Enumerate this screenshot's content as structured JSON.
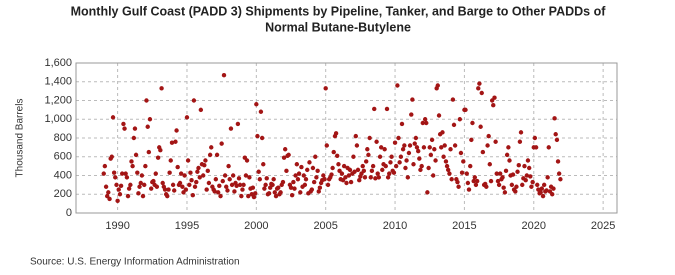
{
  "chart_data": {
    "type": "scatter",
    "title": [
      "Monthly Gulf Coast (PADD 3) Shipments by Pipeline, Tanker, and Barge to Other PADDs of",
      "Normal Butane-Butylene"
    ],
    "y_label": "Thousand Barrels",
    "source": "Source: U.S. Energy Information Administration",
    "xlim": [
      1987,
      2026
    ],
    "xticks": [
      1990,
      1995,
      2000,
      2005,
      2010,
      2015,
      2020,
      2025
    ],
    "ylim": [
      0,
      1600
    ],
    "yticks": [
      0,
      200,
      400,
      600,
      800,
      {
        "value": 1000,
        "label": "1,000"
      },
      {
        "value": 1200,
        "label": "1,200"
      },
      {
        "value": 1400,
        "label": "1,400"
      },
      {
        "value": 1600,
        "label": "1,600"
      }
    ],
    "grid": true,
    "series": [
      {
        "color": "#a31515",
        "x": [
          1989,
          1989.08,
          1989.17,
          1989.25,
          1989.33,
          1989.42,
          1989.5,
          1989.58,
          1989.67,
          1989.75,
          1989.83,
          1989.92,
          1990,
          1990.08,
          1990.17,
          1990.25,
          1990.33,
          1990.42,
          1990.5,
          1990.58,
          1990.67,
          1990.75,
          1990.83,
          1990.92,
          1991,
          1991.08,
          1991.17,
          1991.25,
          1991.33,
          1991.42,
          1991.5,
          1991.58,
          1991.67,
          1991.75,
          1991.83,
          1991.92,
          1992,
          1992.08,
          1992.17,
          1992.25,
          1992.33,
          1992.42,
          1992.5,
          1992.58,
          1992.67,
          1992.75,
          1992.83,
          1992.92,
          1993,
          1993.08,
          1993.17,
          1993.25,
          1993.33,
          1993.42,
          1993.5,
          1993.58,
          1993.67,
          1993.75,
          1993.83,
          1993.92,
          1994,
          1994.08,
          1994.17,
          1994.25,
          1994.33,
          1994.42,
          1994.5,
          1994.58,
          1994.67,
          1994.75,
          1994.83,
          1994.92,
          1995,
          1995.08,
          1995.17,
          1995.25,
          1995.33,
          1995.42,
          1995.5,
          1995.58,
          1995.67,
          1995.75,
          1995.83,
          1995.92,
          1996,
          1996.08,
          1996.17,
          1996.25,
          1996.33,
          1996.42,
          1996.5,
          1996.58,
          1996.67,
          1996.75,
          1996.83,
          1996.92,
          1997,
          1997.08,
          1997.17,
          1997.25,
          1997.33,
          1997.42,
          1997.5,
          1997.58,
          1997.67,
          1997.75,
          1997.83,
          1997.92,
          1998,
          1998.08,
          1998.17,
          1998.25,
          1998.33,
          1998.42,
          1998.5,
          1998.58,
          1998.67,
          1998.75,
          1998.83,
          1998.92,
          1999,
          1999.08,
          1999.17,
          1999.25,
          1999.33,
          1999.42,
          1999.5,
          1999.58,
          1999.67,
          1999.75,
          1999.83,
          1999.92,
          2000,
          2000.08,
          2000.17,
          2000.25,
          2000.33,
          2000.42,
          2000.5,
          2000.58,
          2000.67,
          2000.75,
          2000.83,
          2000.92,
          2001,
          2001.08,
          2001.17,
          2001.25,
          2001.33,
          2001.42,
          2001.5,
          2001.58,
          2001.67,
          2001.75,
          2001.83,
          2001.92,
          2002,
          2002.08,
          2002.17,
          2002.25,
          2002.33,
          2002.42,
          2002.5,
          2002.58,
          2002.67,
          2002.75,
          2002.83,
          2002.92,
          2003,
          2003.08,
          2003.17,
          2003.25,
          2003.33,
          2003.42,
          2003.5,
          2003.58,
          2003.67,
          2003.75,
          2003.83,
          2003.92,
          2004,
          2004.08,
          2004.17,
          2004.25,
          2004.33,
          2004.42,
          2004.5,
          2004.58,
          2004.67,
          2004.75,
          2004.83,
          2004.92,
          2005,
          2005.08,
          2005.17,
          2005.25,
          2005.33,
          2005.42,
          2005.5,
          2005.58,
          2005.67,
          2005.75,
          2005.83,
          2005.92,
          2006,
          2006.08,
          2006.17,
          2006.25,
          2006.33,
          2006.42,
          2006.5,
          2006.58,
          2006.67,
          2006.75,
          2006.83,
          2006.92,
          2007,
          2007.08,
          2007.17,
          2007.25,
          2007.33,
          2007.42,
          2007.5,
          2007.58,
          2007.67,
          2007.75,
          2007.83,
          2007.92,
          2008,
          2008.08,
          2008.17,
          2008.25,
          2008.33,
          2008.42,
          2008.5,
          2008.58,
          2008.67,
          2008.75,
          2008.83,
          2008.92,
          2009,
          2009.08,
          2009.17,
          2009.25,
          2009.33,
          2009.42,
          2009.5,
          2009.58,
          2009.67,
          2009.75,
          2009.83,
          2009.92,
          2010,
          2010.08,
          2010.17,
          2010.25,
          2010.33,
          2010.42,
          2010.5,
          2010.58,
          2010.67,
          2010.75,
          2010.83,
          2010.92,
          2011,
          2011.08,
          2011.17,
          2011.25,
          2011.33,
          2011.42,
          2011.5,
          2011.58,
          2011.67,
          2011.75,
          2011.83,
          2011.92,
          2012,
          2012.08,
          2012.17,
          2012.25,
          2012.33,
          2012.42,
          2012.5,
          2012.58,
          2012.67,
          2012.75,
          2012.83,
          2012.92,
          2013,
          2013.08,
          2013.17,
          2013.25,
          2013.33,
          2013.42,
          2013.5,
          2013.58,
          2013.67,
          2013.75,
          2013.83,
          2013.92,
          2014,
          2014.08,
          2014.17,
          2014.25,
          2014.33,
          2014.42,
          2014.5,
          2014.58,
          2014.67,
          2014.75,
          2014.83,
          2014.92,
          2015,
          2015.08,
          2015.17,
          2015.25,
          2015.33,
          2015.42,
          2015.5,
          2015.58,
          2015.67,
          2015.75,
          2015.83,
          2015.92,
          2016,
          2016.08,
          2016.17,
          2016.25,
          2016.33,
          2016.42,
          2016.5,
          2016.58,
          2016.67,
          2016.75,
          2016.83,
          2016.92,
          2017,
          2017.08,
          2017.17,
          2017.25,
          2017.33,
          2017.42,
          2017.5,
          2017.58,
          2017.67,
          2017.75,
          2017.83,
          2017.92,
          2018,
          2018.08,
          2018.17,
          2018.25,
          2018.33,
          2018.42,
          2018.5,
          2018.58,
          2018.67,
          2018.75,
          2018.83,
          2018.92,
          2019,
          2019.08,
          2019.17,
          2019.25,
          2019.33,
          2019.42,
          2019.5,
          2019.58,
          2019.67,
          2019.75,
          2019.83,
          2019.92,
          2020,
          2020.08,
          2020.17,
          2020.25,
          2020.33,
          2020.42,
          2020.5,
          2020.58,
          2020.67,
          2020.75,
          2020.83,
          2020.92,
          2021,
          2021.08,
          2021.17,
          2021.25,
          2021.33,
          2021.42,
          2021.5,
          2021.58,
          2021.67,
          2021.75,
          2021.83,
          2021.92
        ],
        "values": [
          420,
          500,
          280,
          180,
          220,
          150,
          580,
          600,
          1020,
          430,
          380,
          300,
          130,
          250,
          200,
          290,
          420,
          950,
          900,
          420,
          380,
          180,
          260,
          300,
          550,
          500,
          800,
          900,
          620,
          430,
          210,
          280,
          320,
          400,
          180,
          300,
          500,
          1200,
          920,
          650,
          1000,
          260,
          330,
          340,
          300,
          420,
          280,
          590,
          700,
          670,
          1330,
          320,
          280,
          250,
          200,
          180,
          250,
          430,
          560,
          750,
          300,
          240,
          760,
          880,
          490,
          300,
          320,
          420,
          280,
          220,
          400,
          250,
          1020,
          560,
          300,
          430,
          350,
          190,
          1200,
          280,
          330,
          440,
          480,
          380,
          1100,
          520,
          400,
          510,
          560,
          250,
          450,
          320,
          620,
          700,
          280,
          250,
          230,
          360,
          620,
          220,
          290,
          180,
          740,
          340,
          1470,
          400,
          280,
          240,
          500,
          360,
          900,
          300,
          400,
          230,
          320,
          290,
          950,
          370,
          300,
          180,
          250,
          300,
          590,
          400,
          560,
          180,
          380,
          260,
          200,
          270,
          170,
          210,
          1160,
          820,
          440,
          360,
          1080,
          800,
          520,
          260,
          300,
          370,
          200,
          210,
          270,
          310,
          300,
          360,
          220,
          180,
          260,
          270,
          200,
          220,
          300,
          330,
          590,
          680,
          450,
          610,
          620,
          300,
          270,
          190,
          330,
          260,
          400,
          520,
          360,
          420,
          220,
          490,
          280,
          400,
          300,
          360,
          460,
          210,
          540,
          230,
          250,
          480,
          330,
          600,
          380,
          450,
          230,
          270,
          320,
          350,
          400,
          360,
          1330,
          720,
          300,
          360,
          380,
          410,
          480,
          650,
          820,
          850,
          610,
          520,
          450,
          360,
          420,
          350,
          500,
          380,
          320,
          480,
          400,
          460,
          330,
          420,
          600,
          440,
          820,
          720,
          460,
          350,
          390,
          420,
          500,
          450,
          380,
          550,
          680,
          620,
          800,
          380,
          450,
          500,
          1110,
          370,
          760,
          420,
          380,
          600,
          700,
          460,
          520,
          680,
          500,
          1110,
          380,
          420,
          540,
          600,
          450,
          430,
          750,
          500,
          1360,
          800,
          540,
          600,
          950,
          680,
          720,
          480,
          560,
          380,
          640,
          720,
          1050,
          1210,
          520,
          740,
          800,
          700,
          660,
          580,
          460,
          500,
          960,
          700,
          1000,
          960,
          220,
          480,
          700,
          620,
          780,
          400,
          680,
          560,
          1330,
          1360,
          1040,
          840,
          700,
          860,
          600,
          720,
          550,
          500,
          460,
          420,
          680,
          360,
          1210,
          940,
          720,
          360,
          330,
          280,
          1000,
          640,
          430,
          550,
          1100,
          1100,
          420,
          320,
          250,
          500,
          780,
          960,
          340,
          380,
          300,
          340,
          1330,
          1380,
          920,
          1280,
          650,
          300,
          310,
          280,
          720,
          820,
          520,
          340,
          1200,
          1150,
          1230,
          760,
          420,
          340,
          300,
          420,
          360,
          380,
          270,
          220,
          450,
          620,
          700,
          560,
          400,
          300,
          410,
          250,
          230,
          280,
          440,
          510,
          760,
          860,
          300,
          370,
          500,
          350,
          400,
          560,
          480,
          390,
          280,
          330,
          700,
          800,
          700,
          300,
          250,
          210,
          220,
          260,
          180,
          300,
          230,
          240,
          380,
          700,
          230,
          280,
          200,
          260,
          1010,
          840,
          780,
          550,
          420,
          360
        ]
      }
    ]
  }
}
